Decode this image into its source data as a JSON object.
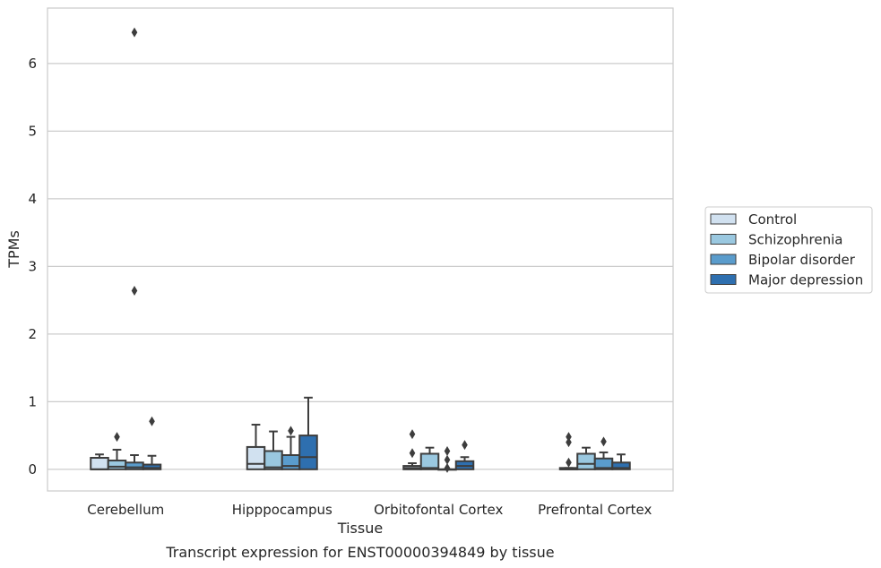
{
  "caption": "Transcript expression for ENST00000394849 by tissue",
  "chart_data": {
    "type": "box",
    "title": "",
    "xlabel": "Tissue",
    "ylabel": "TPMs",
    "ylim": [
      -0.32,
      6.82
    ],
    "yticks": [
      0,
      1,
      2,
      3,
      4,
      5,
      6
    ],
    "grid": "horizontal",
    "legend_position": "right",
    "categories": [
      "Cerebellum",
      "Hipppocampus",
      "Orbitofontal Cortex",
      "Prefrontal Cortex"
    ],
    "series": [
      {
        "name": "Control",
        "color": "#d1e1f0",
        "boxes": [
          {
            "q1": 0.0,
            "median": 0.0,
            "q3": 0.17,
            "whisker_low": 0.0,
            "whisker_high": 0.22,
            "outliers": []
          },
          {
            "q1": 0.0,
            "median": 0.08,
            "q3": 0.33,
            "whisker_low": 0.0,
            "whisker_high": 0.66,
            "outliers": []
          },
          {
            "q1": 0.0,
            "median": 0.02,
            "q3": 0.05,
            "whisker_low": 0.0,
            "whisker_high": 0.09,
            "outliers": [
              0.24,
              0.52
            ]
          },
          {
            "q1": 0.0,
            "median": 0.0,
            "q3": 0.02,
            "whisker_low": 0.0,
            "whisker_high": 0.02,
            "outliers": [
              0.1,
              0.4,
              0.48
            ]
          }
        ]
      },
      {
        "name": "Schizophrenia",
        "color": "#9ac8e0",
        "boxes": [
          {
            "q1": 0.0,
            "median": 0.04,
            "q3": 0.13,
            "whisker_low": 0.0,
            "whisker_high": 0.29,
            "outliers": [
              0.48
            ]
          },
          {
            "q1": 0.0,
            "median": 0.03,
            "q3": 0.27,
            "whisker_low": 0.0,
            "whisker_high": 0.56,
            "outliers": []
          },
          {
            "q1": 0.0,
            "median": 0.02,
            "q3": 0.23,
            "whisker_low": 0.0,
            "whisker_high": 0.32,
            "outliers": []
          },
          {
            "q1": 0.0,
            "median": 0.08,
            "q3": 0.23,
            "whisker_low": 0.0,
            "whisker_high": 0.32,
            "outliers": []
          }
        ]
      },
      {
        "name": "Bipolar disorder",
        "color": "#5a9ccc",
        "boxes": [
          {
            "q1": 0.0,
            "median": 0.03,
            "q3": 0.1,
            "whisker_low": 0.0,
            "whisker_high": 0.21,
            "outliers": [
              2.64,
              6.46
            ]
          },
          {
            "q1": 0.0,
            "median": 0.05,
            "q3": 0.21,
            "whisker_low": 0.0,
            "whisker_high": 0.48,
            "outliers": [
              0.57
            ]
          },
          {
            "q1": 0.0,
            "median": 0.0,
            "q3": 0.0,
            "whisker_low": 0.0,
            "whisker_high": 0.0,
            "outliers": [
              0.02,
              0.14,
              0.27
            ]
          },
          {
            "q1": 0.0,
            "median": 0.02,
            "q3": 0.16,
            "whisker_low": 0.0,
            "whisker_high": 0.25,
            "outliers": [
              0.41
            ]
          }
        ]
      },
      {
        "name": "Major depression",
        "color": "#2e6faf",
        "boxes": [
          {
            "q1": 0.0,
            "median": 0.02,
            "q3": 0.07,
            "whisker_low": 0.0,
            "whisker_high": 0.2,
            "outliers": [
              0.71
            ]
          },
          {
            "q1": 0.0,
            "median": 0.18,
            "q3": 0.5,
            "whisker_low": 0.0,
            "whisker_high": 1.06,
            "outliers": []
          },
          {
            "q1": 0.0,
            "median": 0.05,
            "q3": 0.12,
            "whisker_low": 0.0,
            "whisker_high": 0.18,
            "outliers": [
              0.36
            ]
          },
          {
            "q1": 0.0,
            "median": 0.02,
            "q3": 0.1,
            "whisker_low": 0.0,
            "whisker_high": 0.22,
            "outliers": []
          }
        ]
      }
    ]
  }
}
